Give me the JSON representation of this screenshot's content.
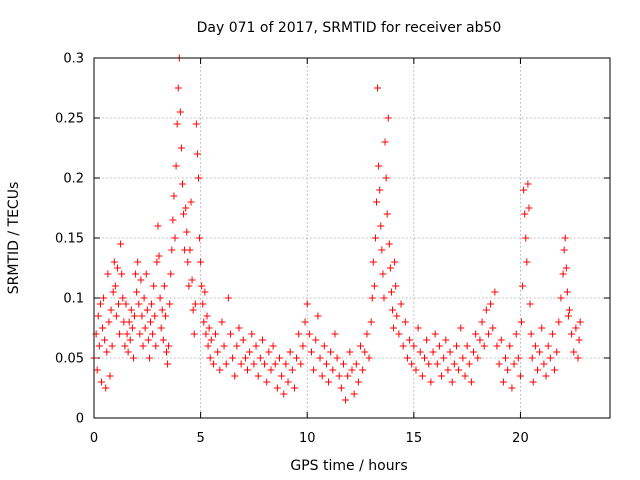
{
  "colors": {
    "series": "#ff0000",
    "background": "#ffffff",
    "axes": "#000000",
    "grid": "#a0a0a0"
  },
  "chart_data": {
    "type": "scatter",
    "title": "Day 071 of 2017, SRMTID for receiver ab50",
    "xlabel": "GPS time / hours",
    "ylabel": "SRMTID / TECUs",
    "xlim": [
      0,
      24.2
    ],
    "ylim": [
      0,
      0.3
    ],
    "xticks": [
      0,
      5,
      10,
      15,
      20
    ],
    "yticks": [
      0,
      0.05,
      0.1,
      0.15,
      0.2,
      0.25,
      0.3
    ],
    "xtick_labels": [
      "0",
      "5",
      "10",
      "15",
      "20"
    ],
    "ytick_labels": [
      "0",
      "0.05",
      "0.1",
      "0.15",
      "0.2",
      "0.25",
      "0.3"
    ],
    "grid": true,
    "marker": "+",
    "series": [
      {
        "name": "SRMTID",
        "points": [
          [
            0.0,
            0.05
          ],
          [
            0.1,
            0.07
          ],
          [
            0.15,
            0.04
          ],
          [
            0.2,
            0.085
          ],
          [
            0.25,
            0.06
          ],
          [
            0.3,
            0.095
          ],
          [
            0.35,
            0.03
          ],
          [
            0.4,
            0.075
          ],
          [
            0.45,
            0.1
          ],
          [
            0.5,
            0.065
          ],
          [
            0.55,
            0.025
          ],
          [
            0.6,
            0.055
          ],
          [
            0.65,
            0.12
          ],
          [
            0.7,
            0.08
          ],
          [
            0.75,
            0.035
          ],
          [
            0.8,
            0.09
          ],
          [
            0.85,
            0.06
          ],
          [
            0.9,
            0.105
          ],
          [
            0.95,
            0.13
          ],
          [
            1.0,
            0.11
          ],
          [
            1.05,
            0.085
          ],
          [
            1.1,
            0.125
          ],
          [
            1.15,
            0.095
          ],
          [
            1.2,
            0.07
          ],
          [
            1.25,
            0.145
          ],
          [
            1.3,
            0.12
          ],
          [
            1.35,
            0.1
          ],
          [
            1.4,
            0.08
          ],
          [
            1.45,
            0.06
          ],
          [
            1.5,
            0.095
          ],
          [
            1.55,
            0.07
          ],
          [
            1.6,
            0.055
          ],
          [
            1.65,
            0.08
          ],
          [
            1.7,
            0.065
          ],
          [
            1.75,
            0.09
          ],
          [
            1.8,
            0.075
          ],
          [
            1.85,
            0.05
          ],
          [
            1.9,
            0.085
          ],
          [
            1.95,
            0.12
          ],
          [
            2.0,
            0.105
          ],
          [
            2.05,
            0.13
          ],
          [
            2.1,
            0.095
          ],
          [
            2.15,
            0.07
          ],
          [
            2.2,
            0.115
          ],
          [
            2.25,
            0.085
          ],
          [
            2.3,
            0.06
          ],
          [
            2.35,
            0.1
          ],
          [
            2.4,
            0.075
          ],
          [
            2.45,
            0.12
          ],
          [
            2.5,
            0.09
          ],
          [
            2.55,
            0.065
          ],
          [
            2.6,
            0.05
          ],
          [
            2.65,
            0.08
          ],
          [
            2.7,
            0.095
          ],
          [
            2.75,
            0.07
          ],
          [
            2.8,
            0.11
          ],
          [
            2.85,
            0.085
          ],
          [
            2.9,
            0.06
          ],
          [
            2.95,
            0.13
          ],
          [
            3.0,
            0.16
          ],
          [
            3.05,
            0.135
          ],
          [
            3.1,
            0.1
          ],
          [
            3.15,
            0.075
          ],
          [
            3.2,
            0.09
          ],
          [
            3.25,
            0.065
          ],
          [
            3.3,
            0.11
          ],
          [
            3.35,
            0.085
          ],
          [
            3.4,
            0.055
          ],
          [
            3.45,
            0.045
          ],
          [
            3.5,
            0.06
          ],
          [
            3.55,
            0.095
          ],
          [
            3.6,
            0.12
          ],
          [
            3.65,
            0.14
          ],
          [
            3.7,
            0.165
          ],
          [
            3.75,
            0.185
          ],
          [
            3.8,
            0.15
          ],
          [
            3.85,
            0.21
          ],
          [
            3.9,
            0.245
          ],
          [
            3.95,
            0.275
          ],
          [
            4.0,
            0.3
          ],
          [
            4.05,
            0.255
          ],
          [
            4.1,
            0.225
          ],
          [
            4.15,
            0.195
          ],
          [
            4.2,
            0.17
          ],
          [
            4.25,
            0.14
          ],
          [
            4.3,
            0.175
          ],
          [
            4.35,
            0.155
          ],
          [
            4.4,
            0.13
          ],
          [
            4.45,
            0.11
          ],
          [
            4.5,
            0.14
          ],
          [
            4.55,
            0.18
          ],
          [
            4.6,
            0.115
          ],
          [
            4.65,
            0.09
          ],
          [
            4.7,
            0.07
          ],
          [
            4.75,
            0.095
          ],
          [
            4.8,
            0.245
          ],
          [
            4.85,
            0.22
          ],
          [
            4.9,
            0.2
          ],
          [
            4.95,
            0.15
          ],
          [
            5.0,
            0.13
          ],
          [
            5.05,
            0.11
          ],
          [
            5.1,
            0.095
          ],
          [
            5.15,
            0.08
          ],
          [
            5.2,
            0.105
          ],
          [
            5.25,
            0.07
          ],
          [
            5.3,
            0.085
          ],
          [
            5.35,
            0.06
          ],
          [
            5.4,
            0.075
          ],
          [
            5.45,
            0.05
          ],
          [
            5.5,
            0.065
          ],
          [
            5.6,
            0.045
          ],
          [
            5.7,
            0.07
          ],
          [
            5.8,
            0.055
          ],
          [
            5.9,
            0.04
          ],
          [
            6.0,
            0.08
          ],
          [
            6.1,
            0.06
          ],
          [
            6.2,
            0.045
          ],
          [
            6.3,
            0.1
          ],
          [
            6.4,
            0.07
          ],
          [
            6.5,
            0.05
          ],
          [
            6.6,
            0.035
          ],
          [
            6.7,
            0.06
          ],
          [
            6.8,
            0.075
          ],
          [
            6.9,
            0.045
          ],
          [
            7.0,
            0.065
          ],
          [
            7.1,
            0.05
          ],
          [
            7.2,
            0.04
          ],
          [
            7.3,
            0.055
          ],
          [
            7.4,
            0.07
          ],
          [
            7.5,
            0.045
          ],
          [
            7.6,
            0.06
          ],
          [
            7.7,
            0.035
          ],
          [
            7.8,
            0.05
          ],
          [
            7.9,
            0.065
          ],
          [
            8.0,
            0.045
          ],
          [
            8.1,
            0.03
          ],
          [
            8.2,
            0.055
          ],
          [
            8.3,
            0.04
          ],
          [
            8.4,
            0.06
          ],
          [
            8.5,
            0.045
          ],
          [
            8.6,
            0.025
          ],
          [
            8.7,
            0.05
          ],
          [
            8.8,
            0.035
          ],
          [
            8.9,
            0.02
          ],
          [
            9.0,
            0.045
          ],
          [
            9.1,
            0.03
          ],
          [
            9.2,
            0.055
          ],
          [
            9.3,
            0.04
          ],
          [
            9.4,
            0.025
          ],
          [
            9.5,
            0.05
          ],
          [
            9.6,
            0.07
          ],
          [
            9.7,
            0.045
          ],
          [
            9.8,
            0.06
          ],
          [
            9.9,
            0.08
          ],
          [
            10.0,
            0.095
          ],
          [
            10.1,
            0.07
          ],
          [
            10.2,
            0.055
          ],
          [
            10.3,
            0.04
          ],
          [
            10.4,
            0.065
          ],
          [
            10.5,
            0.085
          ],
          [
            10.6,
            0.05
          ],
          [
            10.7,
            0.035
          ],
          [
            10.8,
            0.06
          ],
          [
            10.9,
            0.045
          ],
          [
            11.0,
            0.03
          ],
          [
            11.1,
            0.055
          ],
          [
            11.2,
            0.04
          ],
          [
            11.3,
            0.07
          ],
          [
            11.4,
            0.05
          ],
          [
            11.5,
            0.035
          ],
          [
            11.6,
            0.025
          ],
          [
            11.7,
            0.045
          ],
          [
            11.8,
            0.015
          ],
          [
            11.9,
            0.035
          ],
          [
            12.0,
            0.055
          ],
          [
            12.1,
            0.04
          ],
          [
            12.2,
            0.02
          ],
          [
            12.3,
            0.045
          ],
          [
            12.4,
            0.03
          ],
          [
            12.5,
            0.06
          ],
          [
            12.6,
            0.04
          ],
          [
            12.7,
            0.055
          ],
          [
            12.8,
            0.07
          ],
          [
            12.9,
            0.05
          ],
          [
            13.0,
            0.08
          ],
          [
            13.05,
            0.1
          ],
          [
            13.1,
            0.13
          ],
          [
            13.15,
            0.11
          ],
          [
            13.2,
            0.15
          ],
          [
            13.25,
            0.18
          ],
          [
            13.3,
            0.275
          ],
          [
            13.35,
            0.21
          ],
          [
            13.4,
            0.19
          ],
          [
            13.45,
            0.16
          ],
          [
            13.5,
            0.14
          ],
          [
            13.55,
            0.12
          ],
          [
            13.6,
            0.1
          ],
          [
            13.65,
            0.23
          ],
          [
            13.7,
            0.2
          ],
          [
            13.75,
            0.17
          ],
          [
            13.8,
            0.25
          ],
          [
            13.85,
            0.145
          ],
          [
            13.9,
            0.125
          ],
          [
            13.95,
            0.105
          ],
          [
            14.0,
            0.09
          ],
          [
            14.05,
            0.075
          ],
          [
            14.1,
            0.13
          ],
          [
            14.15,
            0.11
          ],
          [
            14.2,
            0.085
          ],
          [
            14.3,
            0.07
          ],
          [
            14.4,
            0.095
          ],
          [
            14.5,
            0.06
          ],
          [
            14.6,
            0.08
          ],
          [
            14.7,
            0.05
          ],
          [
            14.8,
            0.065
          ],
          [
            14.9,
            0.045
          ],
          [
            15.0,
            0.06
          ],
          [
            15.1,
            0.04
          ],
          [
            15.2,
            0.075
          ],
          [
            15.3,
            0.055
          ],
          [
            15.4,
            0.035
          ],
          [
            15.5,
            0.05
          ],
          [
            15.6,
            0.065
          ],
          [
            15.7,
            0.045
          ],
          [
            15.8,
            0.03
          ],
          [
            15.9,
            0.055
          ],
          [
            16.0,
            0.07
          ],
          [
            16.1,
            0.045
          ],
          [
            16.2,
            0.06
          ],
          [
            16.3,
            0.035
          ],
          [
            16.4,
            0.05
          ],
          [
            16.5,
            0.065
          ],
          [
            16.6,
            0.04
          ],
          [
            16.7,
            0.055
          ],
          [
            16.8,
            0.03
          ],
          [
            16.9,
            0.045
          ],
          [
            17.0,
            0.06
          ],
          [
            17.1,
            0.04
          ],
          [
            17.2,
            0.075
          ],
          [
            17.3,
            0.05
          ],
          [
            17.4,
            0.035
          ],
          [
            17.5,
            0.06
          ],
          [
            17.6,
            0.045
          ],
          [
            17.7,
            0.03
          ],
          [
            17.8,
            0.055
          ],
          [
            17.9,
            0.07
          ],
          [
            18.0,
            0.05
          ],
          [
            18.1,
            0.065
          ],
          [
            18.2,
            0.08
          ],
          [
            18.3,
            0.06
          ],
          [
            18.4,
            0.09
          ],
          [
            18.5,
            0.07
          ],
          [
            18.6,
            0.095
          ],
          [
            18.7,
            0.075
          ],
          [
            18.8,
            0.105
          ],
          [
            18.9,
            0.06
          ],
          [
            19.0,
            0.045
          ],
          [
            19.1,
            0.065
          ],
          [
            19.2,
            0.03
          ],
          [
            19.3,
            0.05
          ],
          [
            19.4,
            0.04
          ],
          [
            19.5,
            0.06
          ],
          [
            19.6,
            0.025
          ],
          [
            19.7,
            0.045
          ],
          [
            19.8,
            0.07
          ],
          [
            19.9,
            0.05
          ],
          [
            20.0,
            0.035
          ],
          [
            20.05,
            0.08
          ],
          [
            20.1,
            0.11
          ],
          [
            20.15,
            0.19
          ],
          [
            20.2,
            0.17
          ],
          [
            20.25,
            0.15
          ],
          [
            20.3,
            0.13
          ],
          [
            20.35,
            0.195
          ],
          [
            20.4,
            0.175
          ],
          [
            20.45,
            0.095
          ],
          [
            20.5,
            0.07
          ],
          [
            20.55,
            0.05
          ],
          [
            20.6,
            0.03
          ],
          [
            20.7,
            0.06
          ],
          [
            20.8,
            0.04
          ],
          [
            20.9,
            0.055
          ],
          [
            21.0,
            0.075
          ],
          [
            21.1,
            0.045
          ],
          [
            21.2,
            0.035
          ],
          [
            21.3,
            0.06
          ],
          [
            21.4,
            0.05
          ],
          [
            21.5,
            0.07
          ],
          [
            21.6,
            0.04
          ],
          [
            21.7,
            0.055
          ],
          [
            21.8,
            0.08
          ],
          [
            21.9,
            0.1
          ],
          [
            22.0,
            0.12
          ],
          [
            22.05,
            0.14
          ],
          [
            22.1,
            0.15
          ],
          [
            22.15,
            0.125
          ],
          [
            22.2,
            0.105
          ],
          [
            22.25,
            0.085
          ],
          [
            22.3,
            0.09
          ],
          [
            22.4,
            0.07
          ],
          [
            22.5,
            0.055
          ],
          [
            22.6,
            0.075
          ],
          [
            22.7,
            0.05
          ],
          [
            22.75,
            0.065
          ],
          [
            22.8,
            0.08
          ]
        ]
      }
    ]
  }
}
